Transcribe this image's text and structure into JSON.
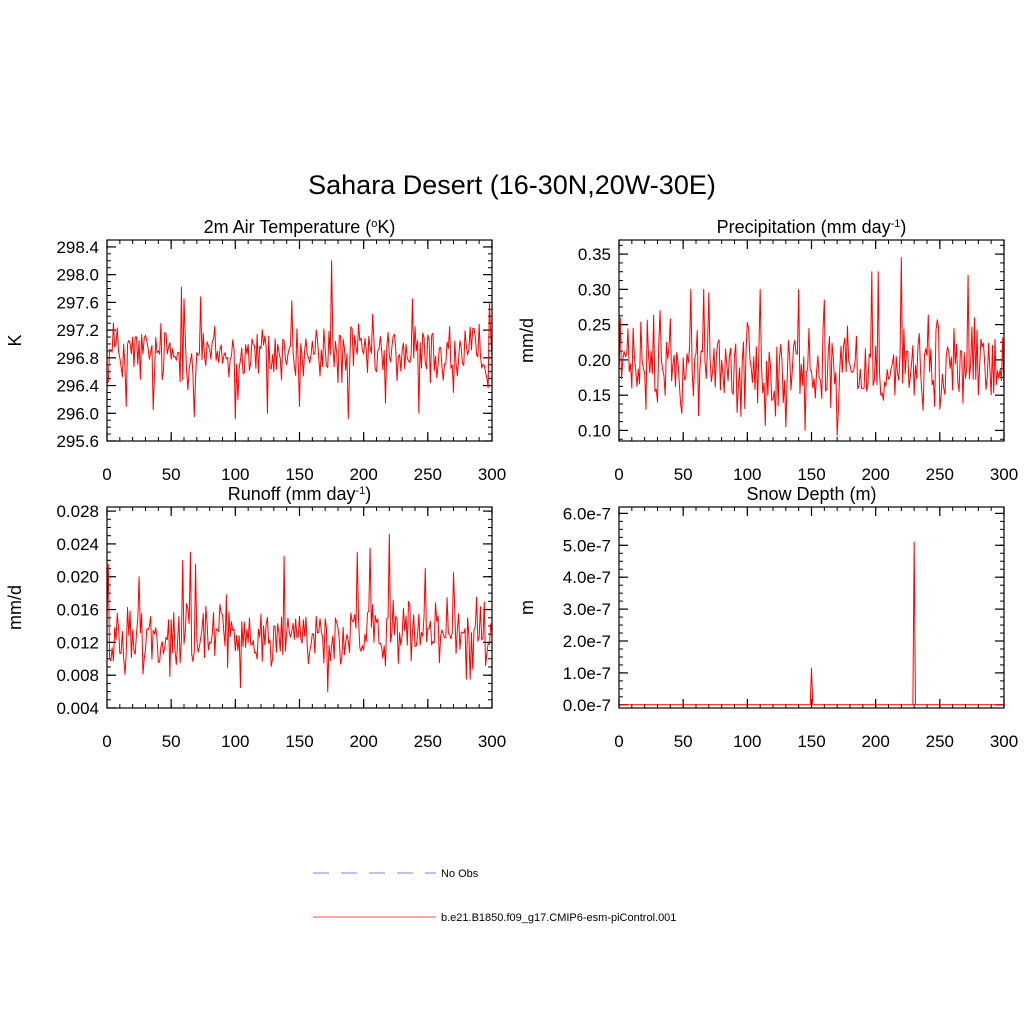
{
  "figure": {
    "title": "Sahara Desert (16-30N,20W-30E)",
    "series_color": "#ff0000",
    "obs_color": "#9999ff"
  },
  "legend": {
    "items": [
      {
        "label": "No Obs",
        "style": "dashed",
        "color": "#9999ff"
      },
      {
        "label": "b.e21.B1850.f09_g17.CMIP6-esm-piControl.001",
        "style": "solid",
        "color": "#ff0000"
      }
    ]
  },
  "chart_data": [
    {
      "type": "line",
      "title": "2m Air Temperature (",
      "title_sup": "o",
      "title_tail": "K)",
      "ylabel": "K",
      "xlim": [
        0,
        300
      ],
      "ylim": [
        295.6,
        298.5
      ],
      "yticks": [
        "298.4",
        "298.0",
        "297.6",
        "297.2",
        "296.8",
        "296.4",
        "296.0",
        "295.6"
      ],
      "ytick_values": [
        298.4,
        298.0,
        297.6,
        297.2,
        296.8,
        296.4,
        296.0,
        295.6
      ],
      "xticks": [
        "0",
        "50",
        "100",
        "150",
        "200",
        "250",
        "300"
      ],
      "xtick_values": [
        0,
        50,
        100,
        150,
        200,
        250,
        300
      ],
      "series": {
        "name": "b.e21.B1850.f09_g17.CMIP6-esm-piControl.001",
        "base": 296.85,
        "amp": 0.32,
        "peaks": [
          [
            1,
            296.45
          ],
          [
            5,
            297.3
          ],
          [
            15,
            296.1
          ],
          [
            36,
            296.05
          ],
          [
            58,
            297.82
          ],
          [
            60,
            297.65
          ],
          [
            68,
            295.95
          ],
          [
            73,
            297.68
          ],
          [
            100,
            295.92
          ],
          [
            102,
            296.2
          ],
          [
            125,
            296.0
          ],
          [
            144,
            297.62
          ],
          [
            150,
            296.1
          ],
          [
            175,
            298.2
          ],
          [
            176,
            297.0
          ],
          [
            188,
            295.92
          ],
          [
            217,
            296.15
          ],
          [
            238,
            297.65
          ],
          [
            243,
            296.0
          ],
          [
            270,
            296.3
          ],
          [
            298,
            297.6
          ]
        ]
      }
    },
    {
      "type": "line",
      "title": "Precipitation (mm day",
      "title_sup": "-1",
      "title_tail": ")",
      "ylabel": "mm/d",
      "xlim": [
        0,
        300
      ],
      "ylim": [
        0.085,
        0.37
      ],
      "yticks": [
        "0.35",
        "0.30",
        "0.25",
        "0.20",
        "0.15",
        "0.10"
      ],
      "ytick_values": [
        0.35,
        0.3,
        0.25,
        0.2,
        0.15,
        0.1
      ],
      "xticks": [
        "0",
        "50",
        "100",
        "150",
        "200",
        "250",
        "300"
      ],
      "xtick_values": [
        0,
        50,
        100,
        150,
        200,
        250,
        300
      ],
      "series": {
        "name": "b.e21.B1850.f09_g17.CMIP6-esm-piControl.001",
        "base": 0.19,
        "amp": 0.045,
        "peaks": [
          [
            1,
            0.26
          ],
          [
            32,
            0.27
          ],
          [
            56,
            0.3
          ],
          [
            66,
            0.3
          ],
          [
            70,
            0.295
          ],
          [
            95,
            0.12
          ],
          [
            110,
            0.3
          ],
          [
            130,
            0.105
          ],
          [
            140,
            0.3
          ],
          [
            145,
            0.1
          ],
          [
            160,
            0.285
          ],
          [
            170,
            0.093
          ],
          [
            197,
            0.325
          ],
          [
            202,
            0.325
          ],
          [
            220,
            0.345
          ],
          [
            230,
            0.15
          ],
          [
            250,
            0.13
          ],
          [
            272,
            0.32
          ]
        ]
      }
    },
    {
      "type": "line",
      "title": "Runoff (mm day",
      "title_sup": "-1",
      "title_tail": ")",
      "ylabel": "mm/d",
      "xlim": [
        0,
        300
      ],
      "ylim": [
        0.004,
        0.0285
      ],
      "yticks": [
        "0.028",
        "0.024",
        "0.020",
        "0.016",
        "0.012",
        "0.008",
        "0.004"
      ],
      "ytick_values": [
        0.028,
        0.024,
        0.02,
        0.016,
        0.012,
        0.008,
        0.004
      ],
      "xticks": [
        "0",
        "50",
        "100",
        "150",
        "200",
        "250",
        "300"
      ],
      "xtick_values": [
        0,
        50,
        100,
        150,
        200,
        250,
        300
      ],
      "series": {
        "name": "b.e21.B1850.f09_g17.CMIP6-esm-piControl.001",
        "base": 0.0128,
        "amp": 0.0028,
        "peaks": [
          [
            1,
            0.0215
          ],
          [
            25,
            0.02
          ],
          [
            59,
            0.022
          ],
          [
            65,
            0.023
          ],
          [
            69,
            0.0215
          ],
          [
            104,
            0.0065
          ],
          [
            138,
            0.0225
          ],
          [
            172,
            0.006
          ],
          [
            195,
            0.023
          ],
          [
            205,
            0.0235
          ],
          [
            220,
            0.0252
          ],
          [
            248,
            0.021
          ],
          [
            270,
            0.0205
          ],
          [
            280,
            0.0075
          ]
        ]
      }
    },
    {
      "type": "line",
      "title": "Snow Depth (m)",
      "title_sup": "",
      "title_tail": "",
      "ylabel": "m",
      "xlim": [
        0,
        300
      ],
      "ylim": [
        -1e-08,
        6.2e-07
      ],
      "yticks": [
        "6.0e-7",
        "5.0e-7",
        "4.0e-7",
        "3.0e-7",
        "2.0e-7",
        "1.0e-7",
        "0.0e-7"
      ],
      "ytick_values": [
        6e-07,
        5e-07,
        4e-07,
        3e-07,
        2e-07,
        1e-07,
        0.0
      ],
      "xticks": [
        "0",
        "50",
        "100",
        "150",
        "200",
        "250",
        "300"
      ],
      "xtick_values": [
        0,
        50,
        100,
        150,
        200,
        250,
        300
      ],
      "series": {
        "name": "b.e21.B1850.f09_g17.CMIP6-esm-piControl.001",
        "base": 0.0,
        "amp": 0.0,
        "peaks": [
          [
            150,
            1.15e-07
          ],
          [
            230,
            5.1e-07
          ]
        ]
      }
    }
  ]
}
